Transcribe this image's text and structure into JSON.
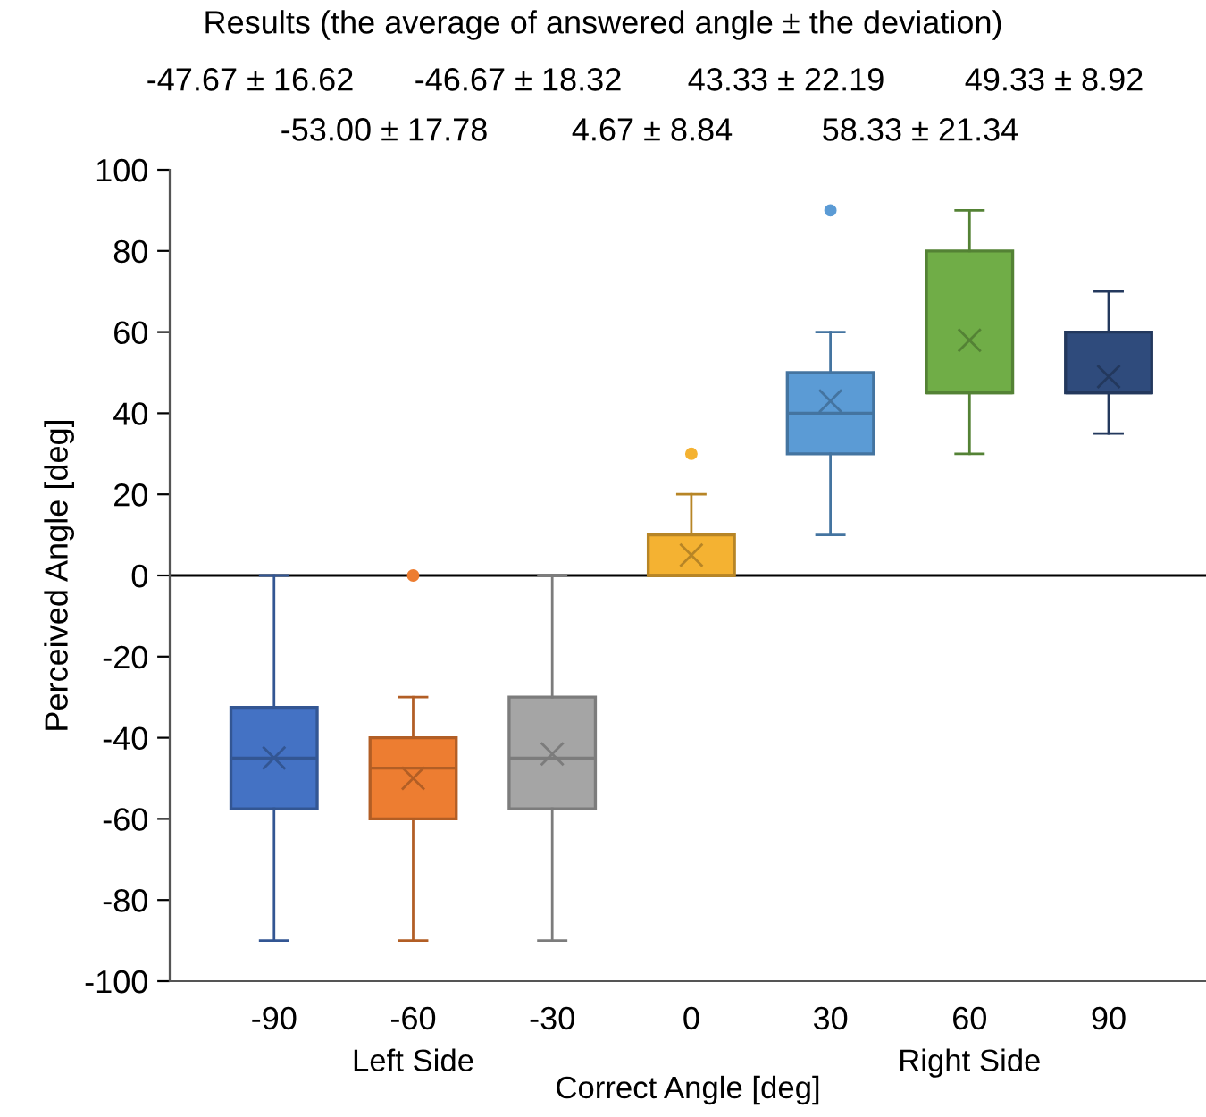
{
  "chart_data": {
    "type": "box",
    "title": "Results (the average of answered angle ± the deviation)",
    "xlabel": "Correct Angle [deg]",
    "ylabel": "Perceived Angle [deg]",
    "categories": [
      "-90",
      "-60",
      "-30",
      "0",
      "30",
      "60",
      "90"
    ],
    "series": [
      {
        "color": "#4472c4",
        "boxes": [
          {
            "low": -90,
            "q1": -57.5,
            "median": -45,
            "q3": -32.5,
            "high": 0,
            "mean": -45
          },
          null,
          null,
          null,
          null,
          null,
          null
        ]
      },
      {
        "color": "#ed7d31",
        "boxes": [
          null,
          {
            "low": -90,
            "q1": -60,
            "median": -47.5,
            "q3": -40,
            "high": -30,
            "mean": -50,
            "outliers": [
              0
            ]
          },
          null,
          null,
          null,
          null,
          null
        ]
      },
      {
        "color": "#a5a5a5",
        "boxes": [
          null,
          null,
          {
            "low": -90,
            "q1": -57.5,
            "median": -45,
            "q3": -30,
            "high": 0,
            "mean": -44
          },
          null,
          null,
          null,
          null
        ]
      },
      {
        "color": "#f4b232",
        "boxes": [
          null,
          null,
          null,
          {
            "low": 0,
            "q1": 0,
            "median": 0,
            "q3": 10,
            "high": 20,
            "mean": 5,
            "outliers": [
              30
            ]
          },
          null,
          null,
          null
        ]
      },
      {
        "color": "#5b9bd5",
        "boxes": [
          null,
          null,
          null,
          null,
          {
            "low": 10,
            "q1": 30,
            "median": 40,
            "q3": 50,
            "high": 60,
            "mean": 43,
            "outliers": [
              90
            ]
          },
          null,
          null
        ]
      },
      {
        "color": "#70ad47",
        "boxes": [
          null,
          null,
          null,
          null,
          null,
          {
            "low": 30,
            "q1": 45,
            "median": 45,
            "q3": 80,
            "high": 90,
            "mean": 58
          },
          null
        ]
      },
      {
        "color": "#2f4b7c",
        "boxes": [
          null,
          null,
          null,
          null,
          null,
          null,
          {
            "low": 35,
            "q1": 45,
            "median": 45,
            "q3": 60,
            "high": 70,
            "mean": 49
          }
        ]
      }
    ],
    "ylim": [
      -100,
      100
    ],
    "yticks": [
      -100,
      -80,
      -60,
      -40,
      -20,
      0,
      20,
      40,
      60,
      80,
      100
    ],
    "ref_lines": [
      {
        "axis": "y",
        "value": 0,
        "color": "#000000"
      }
    ],
    "annotations": [
      "-47.67 ± 16.62",
      "-46.67 ± 18.32",
      "43.33 ± 22.19",
      "49.33 ± 8.92",
      "-53.00 ± 17.78",
      "4.67 ± 8.84",
      "58.33 ± 21.34",
      "Left Side",
      "Right Side"
    ],
    "grid": false,
    "legend": false
  }
}
